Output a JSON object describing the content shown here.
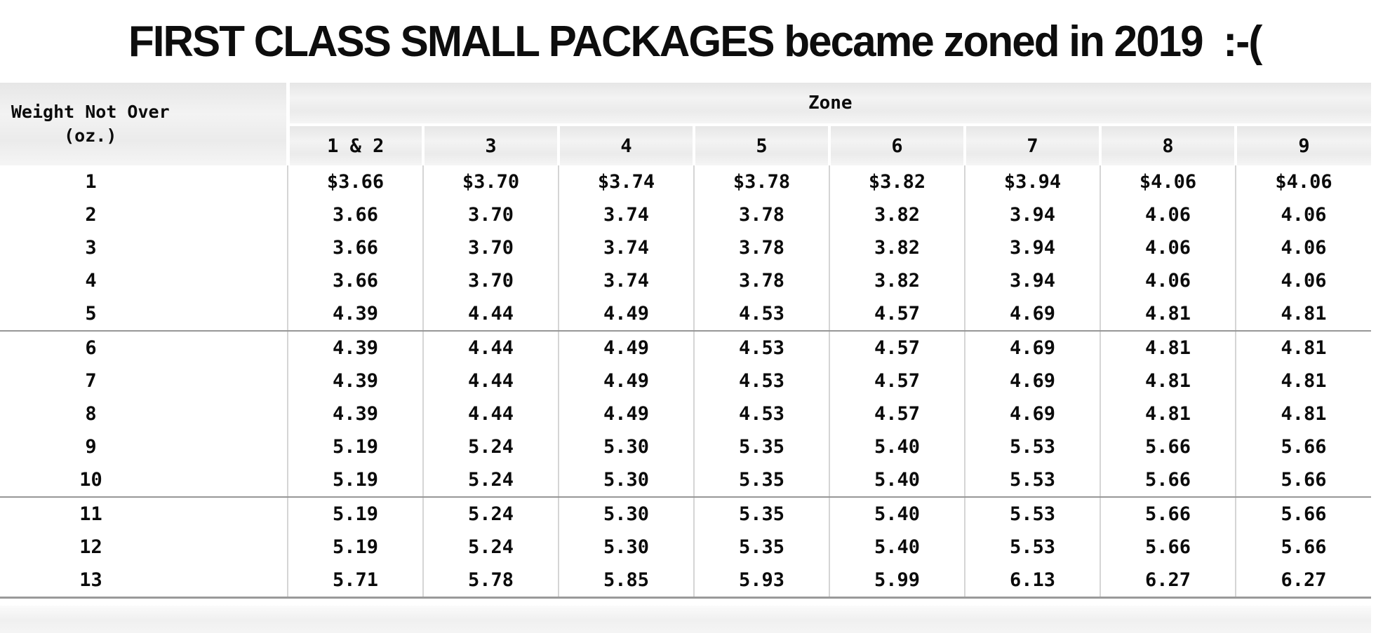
{
  "title": "FIRST CLASS SMALL PACKAGES became zoned in 2019  :-(",
  "colors": {
    "header_bg": "#ececec",
    "grid_line": "#d5d5d5",
    "group_line": "#979797",
    "text": "#0b0b0b",
    "footer_bg": "#f2f2f2"
  },
  "table": {
    "weight_header": {
      "line1": "Weight Not Over",
      "line2": "(oz.)"
    },
    "zone_group_label": "Zone",
    "zone_headers": [
      "1 & 2",
      "3",
      "4",
      "5",
      "6",
      "7",
      "8",
      "9"
    ],
    "rows": [
      {
        "weight": "1",
        "prices": [
          "$3.66",
          "$3.70",
          "$3.74",
          "$3.78",
          "$3.82",
          "$3.94",
          "$4.06",
          "$4.06"
        ]
      },
      {
        "weight": "2",
        "prices": [
          "3.66",
          "3.70",
          "3.74",
          "3.78",
          "3.82",
          "3.94",
          "4.06",
          "4.06"
        ]
      },
      {
        "weight": "3",
        "prices": [
          "3.66",
          "3.70",
          "3.74",
          "3.78",
          "3.82",
          "3.94",
          "4.06",
          "4.06"
        ]
      },
      {
        "weight": "4",
        "prices": [
          "3.66",
          "3.70",
          "3.74",
          "3.78",
          "3.82",
          "3.94",
          "4.06",
          "4.06"
        ]
      },
      {
        "weight": "5",
        "prices": [
          "4.39",
          "4.44",
          "4.49",
          "4.53",
          "4.57",
          "4.69",
          "4.81",
          "4.81"
        ]
      },
      {
        "weight": "6",
        "prices": [
          "4.39",
          "4.44",
          "4.49",
          "4.53",
          "4.57",
          "4.69",
          "4.81",
          "4.81"
        ]
      },
      {
        "weight": "7",
        "prices": [
          "4.39",
          "4.44",
          "4.49",
          "4.53",
          "4.57",
          "4.69",
          "4.81",
          "4.81"
        ]
      },
      {
        "weight": "8",
        "prices": [
          "4.39",
          "4.44",
          "4.49",
          "4.53",
          "4.57",
          "4.69",
          "4.81",
          "4.81"
        ]
      },
      {
        "weight": "9",
        "prices": [
          "5.19",
          "5.24",
          "5.30",
          "5.35",
          "5.40",
          "5.53",
          "5.66",
          "5.66"
        ]
      },
      {
        "weight": "10",
        "prices": [
          "5.19",
          "5.24",
          "5.30",
          "5.35",
          "5.40",
          "5.53",
          "5.66",
          "5.66"
        ]
      },
      {
        "weight": "11",
        "prices": [
          "5.19",
          "5.24",
          "5.30",
          "5.35",
          "5.40",
          "5.53",
          "5.66",
          "5.66"
        ]
      },
      {
        "weight": "12",
        "prices": [
          "5.19",
          "5.24",
          "5.30",
          "5.35",
          "5.40",
          "5.53",
          "5.66",
          "5.66"
        ]
      },
      {
        "weight": "13",
        "prices": [
          "5.71",
          "5.78",
          "5.85",
          "5.93",
          "5.99",
          "6.13",
          "6.27",
          "6.27"
        ]
      }
    ],
    "group_end_after_weights": [
      "5",
      "10"
    ]
  },
  "chart_data": {
    "type": "table",
    "title": "FIRST CLASS SMALL PACKAGES became zoned in 2019  :-(",
    "row_axis_label": "Weight Not Over (oz.)",
    "column_group_label": "Zone",
    "columns": [
      "1 & 2",
      "3",
      "4",
      "5",
      "6",
      "7",
      "8",
      "9"
    ],
    "weights_oz": [
      1,
      2,
      3,
      4,
      5,
      6,
      7,
      8,
      9,
      10,
      11,
      12,
      13
    ],
    "prices_usd": [
      [
        3.66,
        3.7,
        3.74,
        3.78,
        3.82,
        3.94,
        4.06,
        4.06
      ],
      [
        3.66,
        3.7,
        3.74,
        3.78,
        3.82,
        3.94,
        4.06,
        4.06
      ],
      [
        3.66,
        3.7,
        3.74,
        3.78,
        3.82,
        3.94,
        4.06,
        4.06
      ],
      [
        3.66,
        3.7,
        3.74,
        3.78,
        3.82,
        3.94,
        4.06,
        4.06
      ],
      [
        4.39,
        4.44,
        4.49,
        4.53,
        4.57,
        4.69,
        4.81,
        4.81
      ],
      [
        4.39,
        4.44,
        4.49,
        4.53,
        4.57,
        4.69,
        4.81,
        4.81
      ],
      [
        4.39,
        4.44,
        4.49,
        4.53,
        4.57,
        4.69,
        4.81,
        4.81
      ],
      [
        4.39,
        4.44,
        4.49,
        4.53,
        4.57,
        4.69,
        4.81,
        4.81
      ],
      [
        5.19,
        5.24,
        5.3,
        5.35,
        5.4,
        5.53,
        5.66,
        5.66
      ],
      [
        5.19,
        5.24,
        5.3,
        5.35,
        5.4,
        5.53,
        5.66,
        5.66
      ],
      [
        5.19,
        5.24,
        5.3,
        5.35,
        5.4,
        5.53,
        5.66,
        5.66
      ],
      [
        5.19,
        5.24,
        5.3,
        5.35,
        5.4,
        5.53,
        5.66,
        5.66
      ],
      [
        5.71,
        5.78,
        5.85,
        5.93,
        5.99,
        6.13,
        6.27,
        6.27
      ]
    ]
  }
}
